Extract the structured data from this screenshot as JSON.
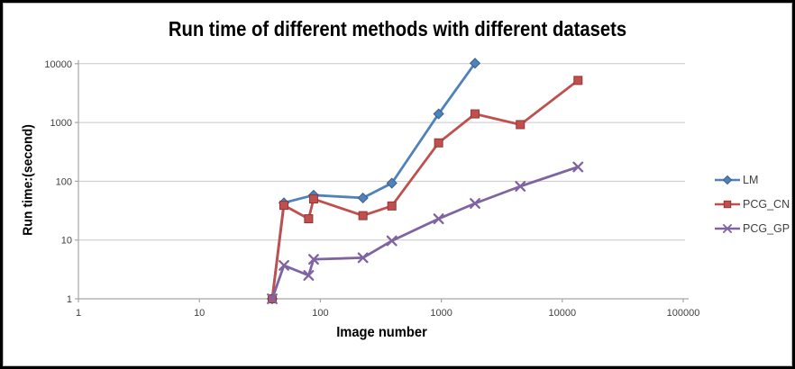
{
  "frame": {
    "background": "#ffffff",
    "border_color": "#000000"
  },
  "chart_data": {
    "type": "line",
    "title": "Run time of different methods with different datasets",
    "xlabel": "Image number",
    "ylabel": "Run time:(second)",
    "x_scale": "log",
    "y_scale": "log",
    "xlim": [
      1,
      100000
    ],
    "ylim": [
      1,
      10000
    ],
    "x_tick_labels": [
      "1",
      "10",
      "100",
      "1000",
      "10000",
      "100000"
    ],
    "y_tick_labels": [
      "1",
      "10",
      "100",
      "1000",
      "10000"
    ],
    "grid": "horizontal-major",
    "legend_position": "right",
    "gridline_color": "#C8C8C8",
    "axis_color": "#A6A6A6",
    "tick_text_color": "#404040",
    "series": [
      {
        "name": "LM",
        "marker": "diamond",
        "color": "#4F81BD",
        "marker_border": "#3A6186",
        "x": [
          40,
          50,
          88,
          225,
          390,
          950,
          1900
        ],
        "y": [
          1,
          43,
          58,
          52,
          93,
          1400,
          10200
        ]
      },
      {
        "name": "PCG_CN",
        "marker": "square",
        "color": "#C0504D",
        "marker_border": "#943634",
        "x": [
          40,
          50,
          80,
          88,
          225,
          390,
          950,
          1900,
          4500,
          13500
        ],
        "y": [
          1,
          39,
          23,
          50,
          26,
          38,
          450,
          1400,
          920,
          5200
        ]
      },
      {
        "name": "PCG_GP",
        "marker": "x",
        "color": "#8064A2",
        "marker_border": "#8064A2",
        "x": [
          40,
          50,
          80,
          88,
          225,
          390,
          950,
          1900,
          4500,
          13500
        ],
        "y": [
          1,
          3.7,
          2.5,
          4.7,
          5,
          9.7,
          23,
          42,
          82,
          175
        ]
      }
    ]
  }
}
